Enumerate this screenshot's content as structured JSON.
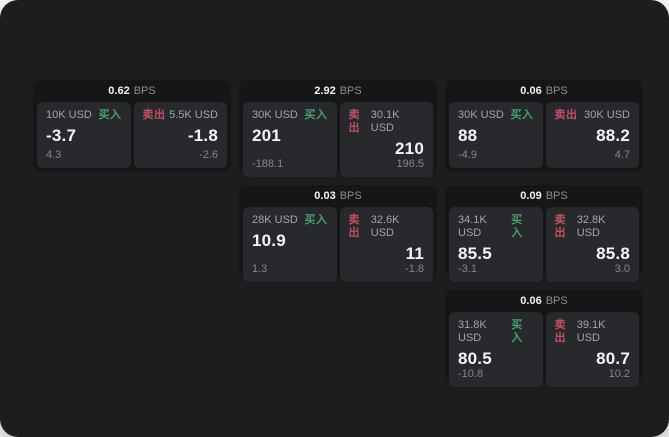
{
  "labels": {
    "bps_unit": "BPS",
    "buy": "买入",
    "sell": "卖出"
  },
  "colors": {
    "panel_background": "#1c1d1f",
    "card_background": "#151618",
    "tile_background": "#28292c",
    "buy_green": "#44a36c",
    "sell_red": "#c2505f"
  },
  "cards": [
    {
      "bps": "0.62",
      "buy": {
        "amount": "10K USD",
        "price": "-3.7",
        "delta": "4.3"
      },
      "sell": {
        "amount": "5.5K USD",
        "price": "-1.8",
        "delta": "-2.6"
      }
    },
    {
      "bps": "2.92",
      "buy": {
        "amount": "30K USD",
        "price": "201",
        "delta": "-188.1"
      },
      "sell": {
        "amount": "30.1K USD",
        "price": "210",
        "delta": "196.5"
      }
    },
    {
      "bps": "0.06",
      "buy": {
        "amount": "30K USD",
        "price": "88",
        "delta": "-4.9"
      },
      "sell": {
        "amount": "30K USD",
        "price": "88.2",
        "delta": "4.7"
      }
    },
    {
      "bps": "0.03",
      "buy": {
        "amount": "28K USD",
        "price": "10.9",
        "delta": "1.3"
      },
      "sell": {
        "amount": "32.6K USD",
        "price": "11",
        "delta": "-1.8"
      }
    },
    {
      "bps": "0.09",
      "buy": {
        "amount": "34.1K USD",
        "price": "85.5",
        "delta": "-3.1"
      },
      "sell": {
        "amount": "32.8K USD",
        "price": "85.8",
        "delta": "3.0"
      }
    },
    {
      "bps": "0.06",
      "buy": {
        "amount": "31.8K USD",
        "price": "80.5",
        "delta": "-10.8"
      },
      "sell": {
        "amount": "39.1K USD",
        "price": "80.7",
        "delta": "10.2"
      }
    }
  ]
}
